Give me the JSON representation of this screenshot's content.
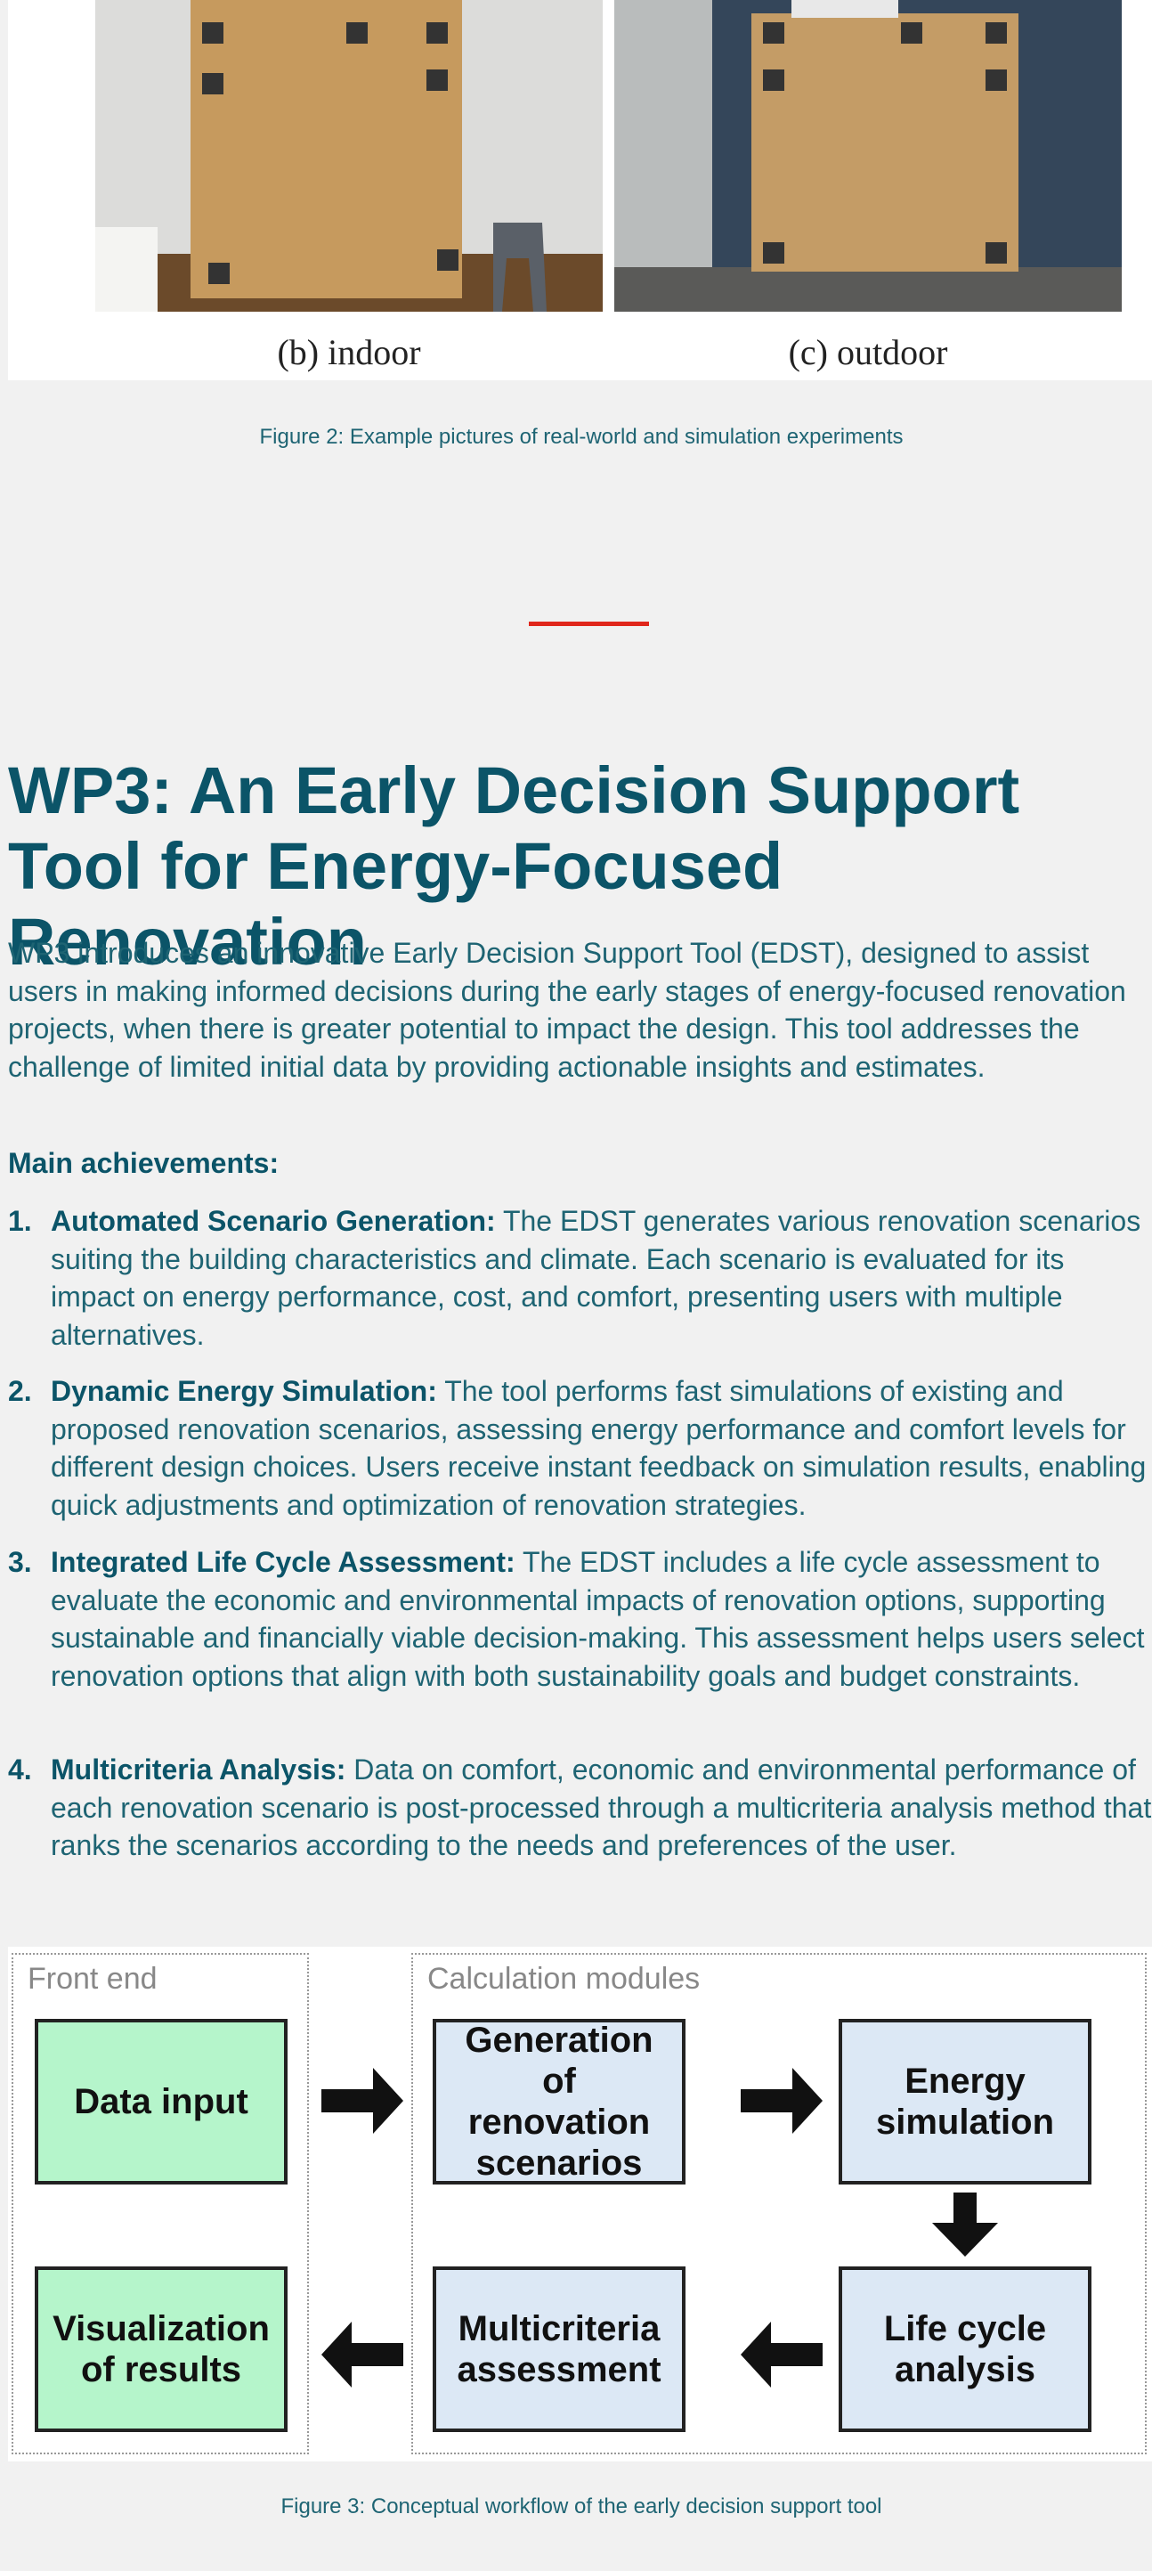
{
  "figure2": {
    "labels": [
      "(b) indoor",
      "(c) outdoor"
    ],
    "caption": "Figure 2: Example pictures of real-world and simulation experiments"
  },
  "section": {
    "title": "WP3: An Early Decision Support Tool for Energy-Focused Renovation",
    "intro": "WP3 introduces an innovative Early Decision Support Tool (EDST), designed to assist users in making informed decisions during the early stages of energy-focused renovation projects, when there is greater potential to impact the design. This tool addresses the challenge of limited initial data by providing actionable insights and estimates.",
    "achievements_heading": "Main achievements:",
    "achievements": [
      {
        "number": "1.",
        "title": "Automated Scenario Generation:",
        "text": "The EDST generates various renovation scenarios suiting the building characteristics and climate. Each scenario is evaluated for its impact on energy performance, cost, and comfort, presenting users with multiple alternatives."
      },
      {
        "number": "2.",
        "title": "Dynamic Energy Simulation:",
        "text": "The tool performs fast simulations of existing and proposed renovation scenarios, assessing energy performance and comfort levels for different design choices. Users receive instant feedback on simulation results, enabling quick adjustments and optimization of renovation strategies."
      },
      {
        "number": "3.",
        "title": "Integrated Life Cycle Assessment:",
        "text": "The EDST includes a life cycle assessment to evaluate the economic and environmental impacts of renovation options, supporting sustainable and financially viable decision-making. This assessment helps users select renovation options that align with both sustainability goals and budget constraints."
      },
      {
        "number": "4.",
        "title": "Multicriteria Analysis:",
        "text": "Data on comfort, economic and environmental performance of each renovation scenario is post-processed through a multicriteria analysis method that ranks the scenarios according to the needs and preferences of the user."
      }
    ]
  },
  "figure3": {
    "groups": [
      "Front end",
      "Calculation modules"
    ],
    "boxes": [
      "Data input",
      "Generation of renovation scenarios",
      "Energy simulation",
      "Visualization of results",
      "Multicriteria assessment",
      "Life cycle analysis"
    ],
    "caption": "Figure 3: Conceptual workflow of the early decision support tool"
  }
}
